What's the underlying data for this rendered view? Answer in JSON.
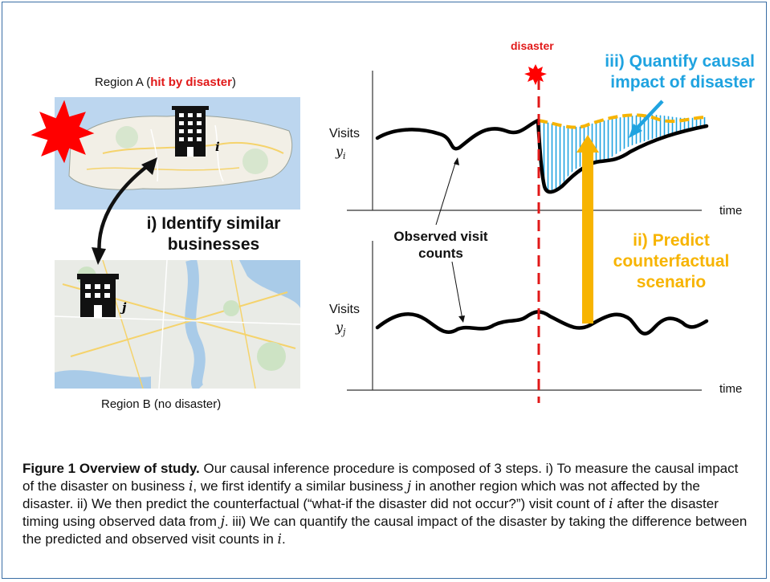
{
  "region_a": {
    "prefix": "Region A (",
    "highlight": "hit by disaster",
    "suffix": ")"
  },
  "region_b": {
    "label": "Region B (no disaster)"
  },
  "business_i": {
    "label": "i"
  },
  "business_j": {
    "label": "j"
  },
  "step1": {
    "line1": "i) Identify similar",
    "line2": "businesses"
  },
  "observed": {
    "line1": "Observed visit",
    "line2": "counts"
  },
  "top_plot": {
    "ylabel": "Visits",
    "yvar": "y",
    "ysub": "i",
    "xlabel": "time"
  },
  "bottom_plot": {
    "ylabel": "Visits",
    "yvar": "y",
    "ysub": "j",
    "xlabel": "time"
  },
  "disaster_label": "disaster",
  "step2": {
    "line1": "ii) Predict",
    "line2": "counterfactual",
    "line3": "scenario"
  },
  "step3": {
    "line1": "iii) Quantify causal",
    "line2": "impact of disaster"
  },
  "colors": {
    "disaster_red": "#e11919",
    "impact_blue": "#1fa3e0",
    "predict_orange": "#f7b400",
    "frame_blue": "#3a6ea5"
  },
  "caption": {
    "bold": "Figure 1 Overview of study.",
    "p1": " Our causal inference procedure is composed of 3 steps. i) To measure the causal impact of the disaster on business ",
    "v1": "i",
    "p2": ", we first identify a similar business ",
    "v2": "j",
    "p3": " in another region which was not affected by the disaster. ii) We then predict the counterfactual (“what-if the disaster did not occur?”) visit count of ",
    "v3": "i",
    "p4": " after the disaster timing using observed data from ",
    "v4": "j",
    "p5": ". iii) We can quantify the causal impact of the disaster by taking the difference between the predicted and observed visit counts in ",
    "v5": "i",
    "p6": "."
  }
}
